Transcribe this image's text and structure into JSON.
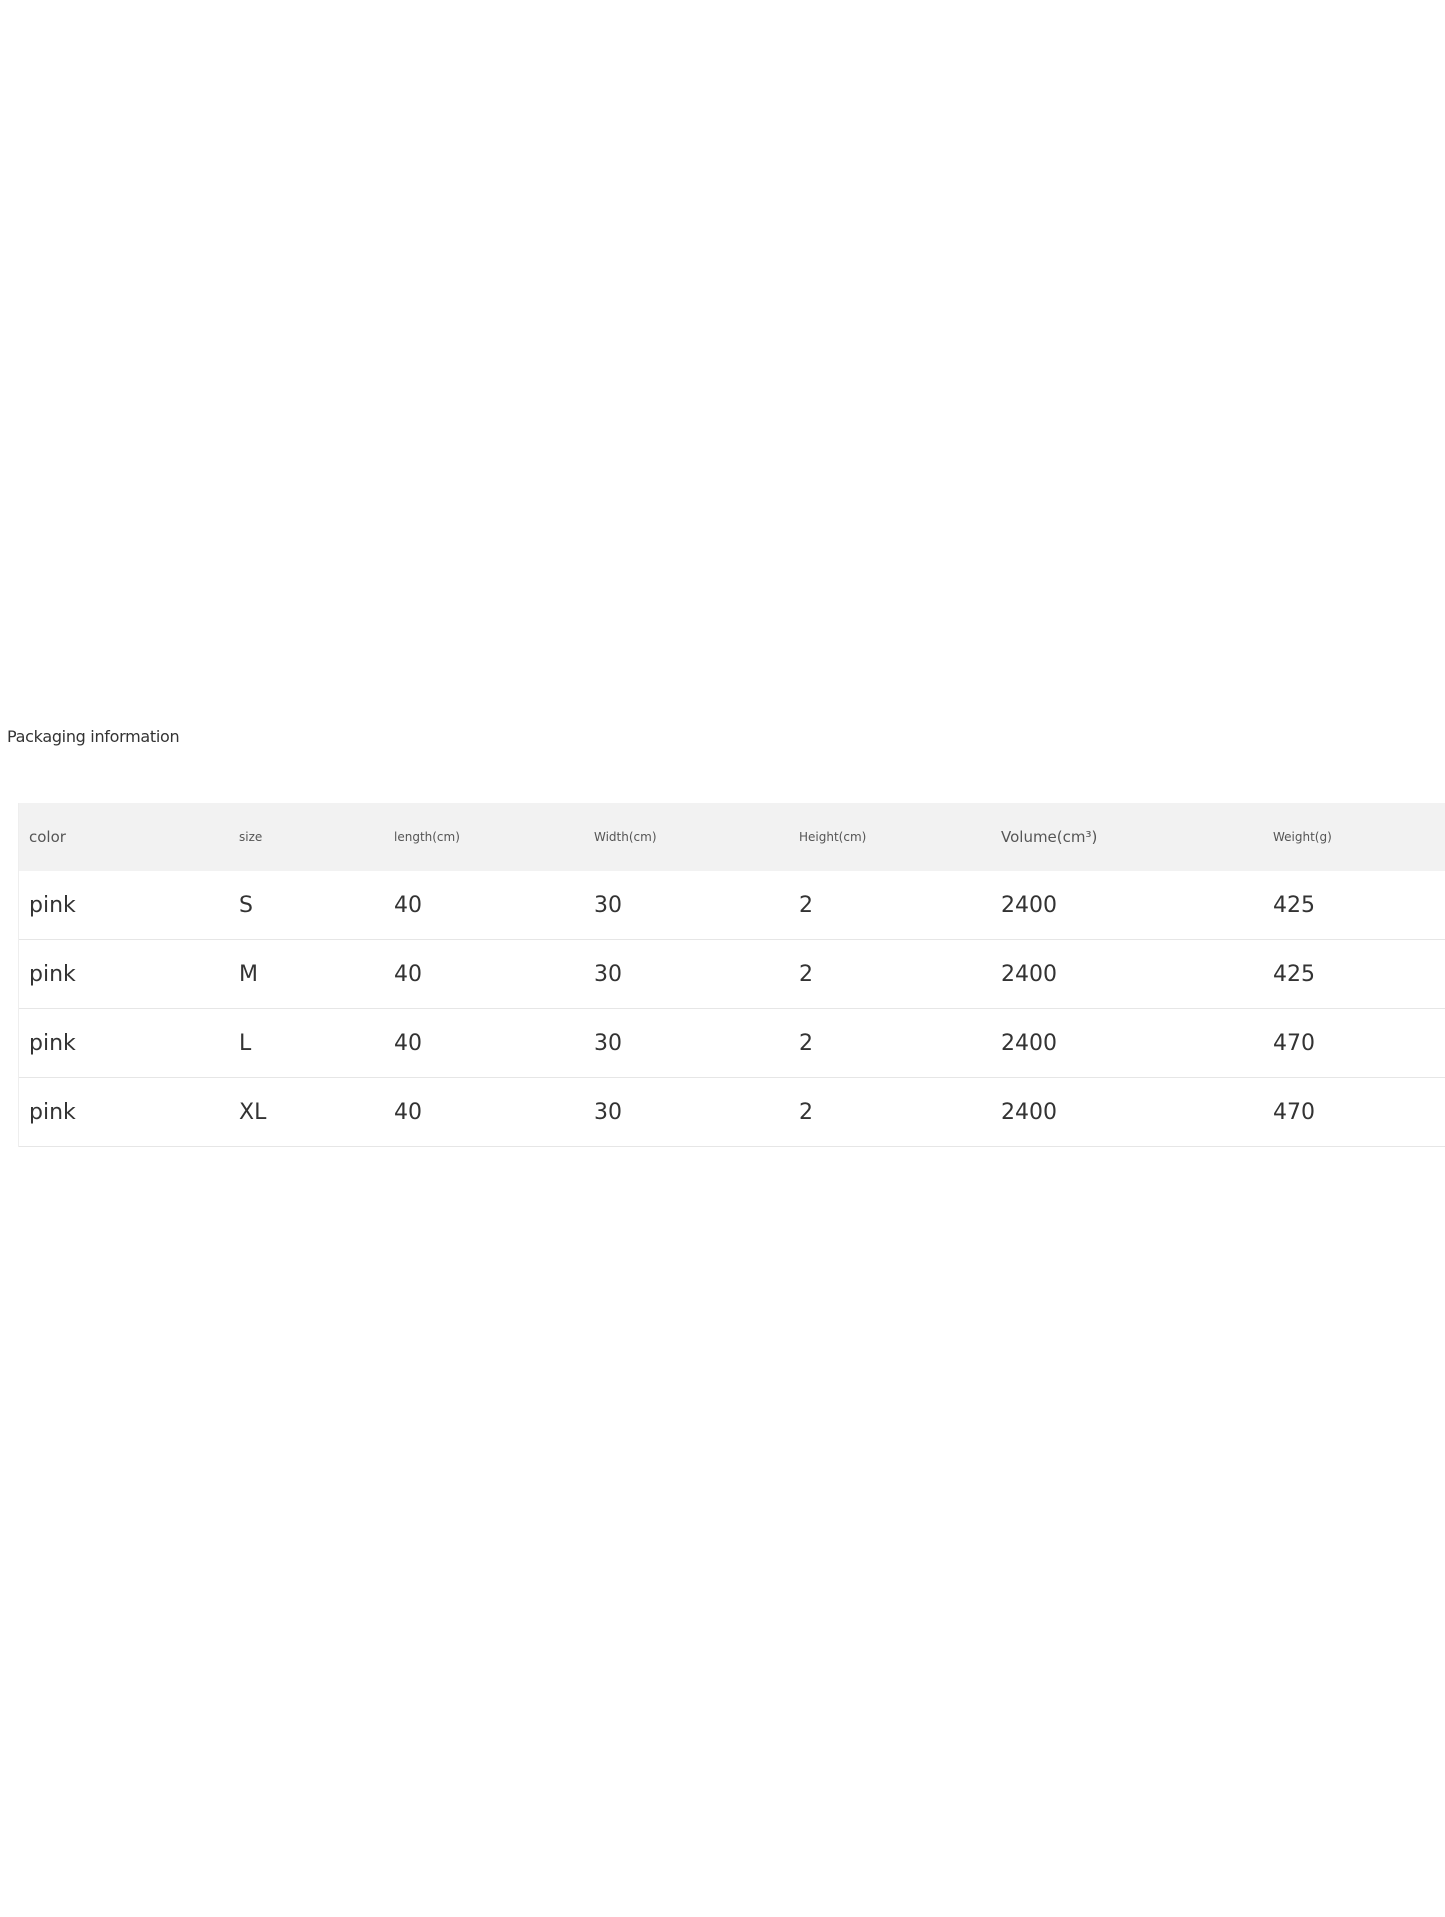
{
  "title": "Packaging information",
  "table": {
    "headers": [
      "color",
      "size",
      "length(cm)",
      "Width(cm)",
      "Height(cm)",
      "Volume(cm³)",
      "Weight(g)"
    ],
    "rows": [
      [
        "pink",
        "S",
        "40",
        "30",
        "2",
        "2400",
        "425"
      ],
      [
        "pink",
        "M",
        "40",
        "30",
        "2",
        "2400",
        "425"
      ],
      [
        "pink",
        "L",
        "40",
        "30",
        "2",
        "2400",
        "470"
      ],
      [
        "pink",
        "XL",
        "40",
        "30",
        "2",
        "2400",
        "470"
      ]
    ]
  }
}
